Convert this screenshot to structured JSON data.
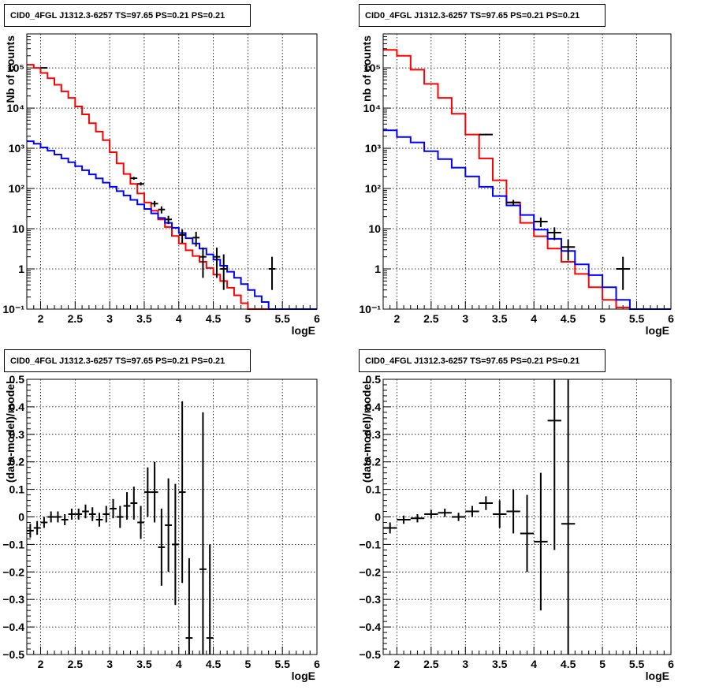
{
  "chart_data": [
    {
      "type": "step-histogram-log",
      "title": "CID0_4FGL J1312.3-6257 TS=97.65 PS=0.21 PS=0.21",
      "xlabel": "logE",
      "ylabel": "Nb of counts",
      "xlim": [
        1.8,
        6.0
      ],
      "ylim": [
        0.1,
        700000
      ],
      "ylog": true,
      "grid": true,
      "xticks": [
        2,
        2.5,
        3,
        3.5,
        4,
        4.5,
        5,
        5.5,
        6
      ],
      "xtick_labels": [
        "2",
        "2.5",
        "3",
        "3.5",
        "4",
        "4.5",
        "5",
        "5.5",
        "6"
      ],
      "yticks": [
        0.1,
        1,
        10,
        100,
        1000,
        10000,
        100000
      ],
      "ytick_labels": [
        "10⁻¹",
        "1",
        "10",
        "10²",
        "10³",
        "10⁴",
        "10⁵"
      ],
      "bin_edges": [
        1.8,
        1.9,
        2.0,
        2.1,
        2.2,
        2.3,
        2.4,
        2.5,
        2.6,
        2.7,
        2.8,
        2.9,
        3.0,
        3.1,
        3.2,
        3.3,
        3.4,
        3.5,
        3.6,
        3.7,
        3.8,
        3.9,
        4.0,
        4.1,
        4.2,
        4.3,
        4.4,
        4.5,
        4.6,
        4.7,
        4.8,
        4.9,
        5.0,
        5.1,
        5.2,
        5.3,
        5.4,
        5.5,
        5.6,
        5.7,
        5.8,
        5.9,
        6.0
      ],
      "series": [
        {
          "color": "#ff0000",
          "values": [
            120000,
            100000,
            75000,
            55000,
            38000,
            26000,
            18000,
            11000,
            7000,
            4200,
            2600,
            1600,
            800,
            420,
            230,
            130,
            75,
            45,
            28,
            17,
            11,
            6.6,
            4.3,
            2.9,
            2.1,
            1.5,
            1.05,
            0.72,
            0.5,
            0.34,
            0.22,
            0.14,
            0.1,
            0.1,
            0.1,
            0.1,
            0.1,
            0.1,
            0.1,
            0.1,
            0.1,
            0.1
          ]
        },
        {
          "color": "#0000ff",
          "values": [
            1500,
            1300,
            1050,
            870,
            700,
            560,
            450,
            360,
            285,
            225,
            178,
            140,
            110,
            86,
            67,
            52,
            40,
            31,
            24,
            18.5,
            14,
            10.5,
            7.8,
            5.8,
            4.3,
            3.2,
            2.3,
            1.7,
            1.2,
            0.85,
            0.6,
            0.42,
            0.3,
            0.21,
            0.15,
            0.1,
            0.1,
            0.1,
            0.1,
            0.1,
            0.1,
            0.1
          ]
        }
      ],
      "data_points": [
        {
          "x": 2.05,
          "y": 100000,
          "xerr": 0.05,
          "ylo": 99500,
          "yhi": 100500
        },
        {
          "x": 3.35,
          "y": 180,
          "xerr": 0.05,
          "ylo": 165,
          "yhi": 195
        },
        {
          "x": 3.45,
          "y": 130,
          "xerr": 0.05,
          "ylo": 118,
          "yhi": 143
        },
        {
          "x": 3.65,
          "y": 42,
          "xerr": 0.05,
          "ylo": 35,
          "yhi": 49
        },
        {
          "x": 3.75,
          "y": 30,
          "xerr": 0.05,
          "ylo": 24,
          "yhi": 36
        },
        {
          "x": 3.85,
          "y": 17,
          "xerr": 0.05,
          "ylo": 13,
          "yhi": 21
        },
        {
          "x": 4.05,
          "y": 7,
          "xerr": 0.05,
          "ylo": 4.4,
          "yhi": 9.6
        },
        {
          "x": 4.25,
          "y": 6,
          "xerr": 0.05,
          "ylo": 3.6,
          "yhi": 8.4
        },
        {
          "x": 4.35,
          "y": 2,
          "xerr": 0.05,
          "ylo": 0.6,
          "yhi": 3.4
        },
        {
          "x": 4.55,
          "y": 2,
          "xerr": 0.05,
          "ylo": 0.6,
          "yhi": 3.4
        },
        {
          "x": 4.65,
          "y": 1,
          "xerr": 0.05,
          "ylo": 0.3,
          "yhi": 2.3
        },
        {
          "x": 5.35,
          "y": 1,
          "xerr": 0.05,
          "ylo": 0.3,
          "yhi": 2.0
        }
      ]
    },
    {
      "type": "step-histogram-log",
      "title": "CID0_4FGL J1312.3-6257 TS=97.65 PS=0.21 PS=0.21",
      "xlabel": "logE",
      "ylabel": "nb of counts",
      "xlim": [
        1.8,
        6.0
      ],
      "ylim": [
        0.1,
        700000
      ],
      "ylog": true,
      "grid": true,
      "xticks": [
        2,
        2.5,
        3,
        3.5,
        4,
        4.5,
        5,
        5.5,
        6
      ],
      "xtick_labels": [
        "2",
        "2.5",
        "3",
        "3.5",
        "4",
        "4.5",
        "5",
        "5.5",
        "6"
      ],
      "yticks": [
        0.1,
        1,
        10,
        100,
        1000,
        10000,
        100000
      ],
      "ytick_labels": [
        "10⁻¹",
        "1",
        "10",
        "10²",
        "10³",
        "10⁴",
        "10⁵"
      ],
      "bin_edges": [
        1.8,
        2.0,
        2.2,
        2.4,
        2.6,
        2.8,
        3.0,
        3.2,
        3.4,
        3.6,
        3.8,
        4.0,
        4.2,
        4.4,
        4.6,
        4.8,
        5.0,
        5.2,
        5.4,
        5.6,
        5.8,
        6.0
      ],
      "series": [
        {
          "color": "#ff0000",
          "values": [
            280000,
            200000,
            90000,
            40000,
            18000,
            7200,
            2200,
            560,
            160,
            45,
            14,
            6.5,
            3.2,
            1.5,
            0.75,
            0.35,
            0.17,
            0.11,
            0.1,
            0.1,
            0.1
          ]
        },
        {
          "color": "#0000ff",
          "values": [
            2800,
            1900,
            1400,
            850,
            540,
            330,
            200,
            110,
            65,
            38,
            22,
            9.5,
            5.6,
            2.8,
            1.3,
            0.7,
            0.35,
            0.17,
            0.1,
            0.1,
            0.1
          ]
        }
      ],
      "data_points": [
        {
          "x": 3.3,
          "y": 2200,
          "xerr": 0.1,
          "ylo": 2100,
          "yhi": 2300
        },
        {
          "x": 3.7,
          "y": 45,
          "xerr": 0.1,
          "ylo": 38,
          "yhi": 52
        },
        {
          "x": 4.1,
          "y": 15,
          "xerr": 0.1,
          "ylo": 11,
          "yhi": 19
        },
        {
          "x": 4.3,
          "y": 8,
          "xerr": 0.1,
          "ylo": 5.2,
          "yhi": 10.8
        },
        {
          "x": 4.5,
          "y": 3.5,
          "xerr": 0.1,
          "ylo": 1.6,
          "yhi": 5.4
        },
        {
          "x": 5.3,
          "y": 1,
          "xerr": 0.1,
          "ylo": 0.3,
          "yhi": 2.0
        }
      ]
    },
    {
      "type": "errorbar",
      "title": "CID0_4FGL J1312.3-6257 TS=97.65 PS=0.21 PS=0.21",
      "xlabel": "logE",
      "ylabel": "(data-model)/model",
      "xlim": [
        1.8,
        6.0
      ],
      "ylim": [
        -0.5,
        0.5
      ],
      "ylog": false,
      "grid": true,
      "xticks": [
        2,
        2.5,
        3,
        3.5,
        4,
        4.5,
        5,
        5.5,
        6
      ],
      "xtick_labels": [
        "2",
        "2.5",
        "3",
        "3.5",
        "4",
        "4.5",
        "5",
        "5.5",
        "6"
      ],
      "yticks": [
        -0.5,
        -0.4,
        -0.3,
        -0.2,
        -0.1,
        0,
        0.1,
        0.2,
        0.3,
        0.4,
        0.5
      ],
      "ytick_labels": [
        "−0.5",
        "−0.4",
        "−0.3",
        "−0.2",
        "−0.1",
        "0",
        "0.1",
        "0.2",
        "0.3",
        "0.4",
        "0.5"
      ],
      "data_points": [
        {
          "x": 1.85,
          "y": -0.05,
          "xerr": 0.05,
          "ylo": -0.075,
          "yhi": -0.025
        },
        {
          "x": 1.95,
          "y": -0.04,
          "xerr": 0.05,
          "ylo": -0.065,
          "yhi": -0.015
        },
        {
          "x": 2.05,
          "y": -0.02,
          "xerr": 0.05,
          "ylo": -0.04,
          "yhi": 0.0
        },
        {
          "x": 2.15,
          "y": 0.0,
          "xerr": 0.05,
          "ylo": -0.02,
          "yhi": 0.02
        },
        {
          "x": 2.25,
          "y": 0.0,
          "xerr": 0.05,
          "ylo": -0.02,
          "yhi": 0.02
        },
        {
          "x": 2.35,
          "y": -0.01,
          "xerr": 0.05,
          "ylo": -0.03,
          "yhi": 0.01
        },
        {
          "x": 2.45,
          "y": 0.01,
          "xerr": 0.05,
          "ylo": -0.01,
          "yhi": 0.03
        },
        {
          "x": 2.55,
          "y": 0.01,
          "xerr": 0.05,
          "ylo": -0.01,
          "yhi": 0.03
        },
        {
          "x": 2.65,
          "y": 0.02,
          "xerr": 0.05,
          "ylo": -0.005,
          "yhi": 0.045
        },
        {
          "x": 2.75,
          "y": 0.01,
          "xerr": 0.05,
          "ylo": -0.015,
          "yhi": 0.035
        },
        {
          "x": 2.85,
          "y": -0.01,
          "xerr": 0.05,
          "ylo": -0.035,
          "yhi": 0.015
        },
        {
          "x": 2.95,
          "y": 0.01,
          "xerr": 0.05,
          "ylo": -0.02,
          "yhi": 0.04
        },
        {
          "x": 3.05,
          "y": 0.03,
          "xerr": 0.05,
          "ylo": -0.005,
          "yhi": 0.065
        },
        {
          "x": 3.15,
          "y": 0.0,
          "xerr": 0.05,
          "ylo": -0.04,
          "yhi": 0.04
        },
        {
          "x": 3.25,
          "y": 0.04,
          "xerr": 0.05,
          "ylo": -0.01,
          "yhi": 0.09
        },
        {
          "x": 3.35,
          "y": 0.05,
          "xerr": 0.05,
          "ylo": -0.01,
          "yhi": 0.11
        },
        {
          "x": 3.45,
          "y": -0.02,
          "xerr": 0.05,
          "ylo": -0.08,
          "yhi": 0.04
        },
        {
          "x": 3.55,
          "y": 0.09,
          "xerr": 0.05,
          "ylo": 0.0,
          "yhi": 0.18
        },
        {
          "x": 3.65,
          "y": 0.09,
          "xerr": 0.05,
          "ylo": -0.02,
          "yhi": 0.2
        },
        {
          "x": 3.75,
          "y": -0.11,
          "xerr": 0.05,
          "ylo": -0.25,
          "yhi": 0.03
        },
        {
          "x": 3.85,
          "y": -0.03,
          "xerr": 0.05,
          "ylo": -0.2,
          "yhi": 0.14
        },
        {
          "x": 3.95,
          "y": -0.1,
          "xerr": 0.05,
          "ylo": -0.32,
          "yhi": 0.12
        },
        {
          "x": 4.05,
          "y": 0.09,
          "xerr": 0.05,
          "ylo": -0.24,
          "yhi": 0.42
        },
        {
          "x": 4.15,
          "y": -0.44,
          "xerr": 0.05,
          "ylo": -0.5,
          "yhi": -0.15
        },
        {
          "x": 4.35,
          "y": -0.19,
          "xerr": 0.05,
          "ylo": -0.5,
          "yhi": 0.38
        },
        {
          "x": 4.45,
          "y": -0.44,
          "xerr": 0.05,
          "ylo": -0.5,
          "yhi": -0.1
        }
      ]
    },
    {
      "type": "errorbar",
      "title": "CID0_4FGL J1312.3-6257 TS=97.65 PS=0.21 PS=0.21",
      "xlabel": "logE",
      "ylabel": "(data-model)/model",
      "xlim": [
        1.8,
        6.0
      ],
      "ylim": [
        -0.5,
        0.5
      ],
      "ylog": false,
      "grid": true,
      "xticks": [
        2,
        2.5,
        3,
        3.5,
        4,
        4.5,
        5,
        5.5,
        6
      ],
      "xtick_labels": [
        "2",
        "2.5",
        "3",
        "3.5",
        "4",
        "4.5",
        "5",
        "5.5",
        "6"
      ],
      "yticks": [
        -0.5,
        -0.4,
        -0.3,
        -0.2,
        -0.1,
        0,
        0.1,
        0.2,
        0.3,
        0.4,
        0.5
      ],
      "ytick_labels": [
        "−0.5",
        "−0.4",
        "−0.3",
        "−0.2",
        "−0.1",
        "0",
        "0.1",
        "0.2",
        "0.3",
        "0.4",
        "0.5"
      ],
      "data_points": [
        {
          "x": 1.9,
          "y": -0.04,
          "xerr": 0.1,
          "ylo": -0.06,
          "yhi": -0.02
        },
        {
          "x": 2.1,
          "y": -0.01,
          "xerr": 0.1,
          "ylo": -0.025,
          "yhi": 0.005
        },
        {
          "x": 2.3,
          "y": -0.005,
          "xerr": 0.1,
          "ylo": -0.02,
          "yhi": 0.01
        },
        {
          "x": 2.5,
          "y": 0.01,
          "xerr": 0.1,
          "ylo": -0.005,
          "yhi": 0.025
        },
        {
          "x": 2.7,
          "y": 0.015,
          "xerr": 0.1,
          "ylo": 0.0,
          "yhi": 0.03
        },
        {
          "x": 2.9,
          "y": 0.0,
          "xerr": 0.1,
          "ylo": -0.015,
          "yhi": 0.015
        },
        {
          "x": 3.1,
          "y": 0.02,
          "xerr": 0.1,
          "ylo": 0.0,
          "yhi": 0.04
        },
        {
          "x": 3.3,
          "y": 0.05,
          "xerr": 0.1,
          "ylo": 0.025,
          "yhi": 0.075
        },
        {
          "x": 3.5,
          "y": 0.01,
          "xerr": 0.1,
          "ylo": -0.04,
          "yhi": 0.06
        },
        {
          "x": 3.7,
          "y": 0.02,
          "xerr": 0.1,
          "ylo": -0.06,
          "yhi": 0.1
        },
        {
          "x": 3.9,
          "y": -0.06,
          "xerr": 0.1,
          "ylo": -0.2,
          "yhi": 0.08
        },
        {
          "x": 4.1,
          "y": -0.09,
          "xerr": 0.1,
          "ylo": -0.34,
          "yhi": 0.16
        },
        {
          "x": 4.3,
          "y": 0.35,
          "xerr": 0.1,
          "ylo": -0.12,
          "yhi": 0.5
        },
        {
          "x": 4.5,
          "y": -0.025,
          "xerr": 0.1,
          "ylo": -0.5,
          "yhi": 0.5
        }
      ]
    }
  ]
}
